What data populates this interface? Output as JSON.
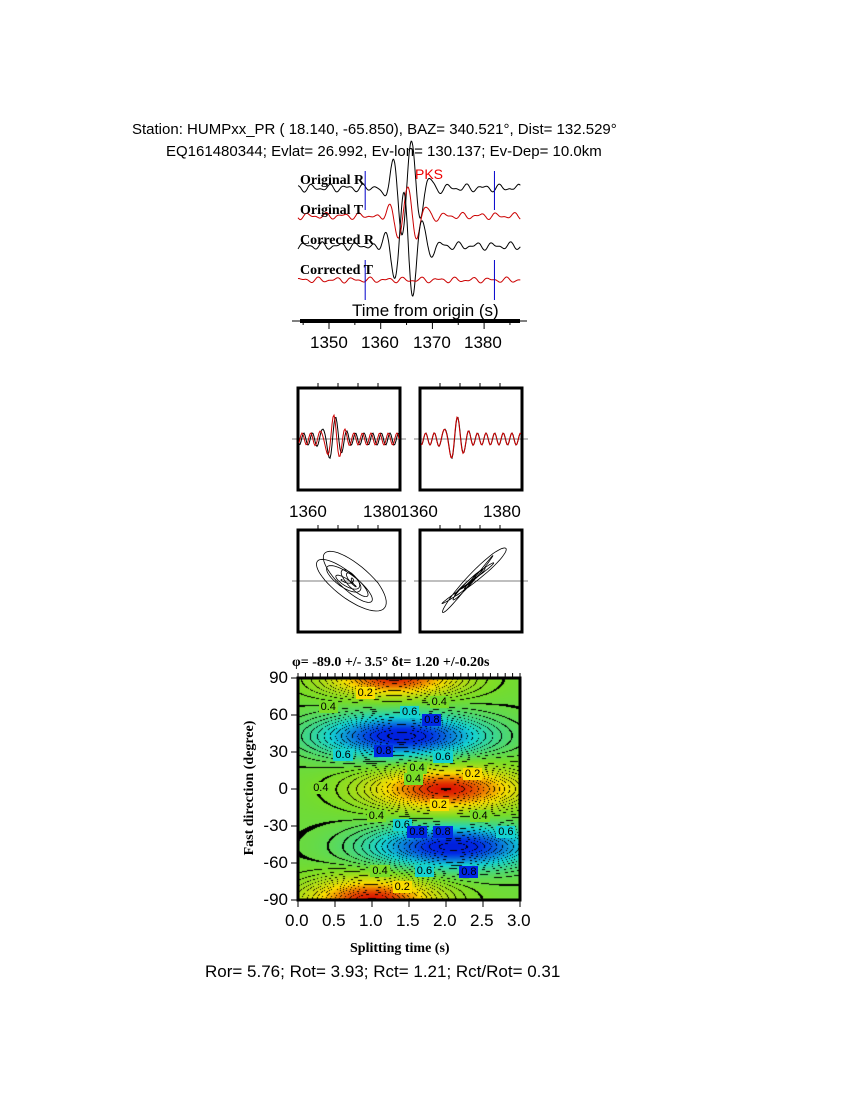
{
  "header": {
    "line1": "Station: HUMPxx_PR (  18.140,  -65.850), BAZ=  340.521°, Dist=  132.529°",
    "line2": "EQ161480344; Evlat=  26.992, Ev-lon= 130.137; Ev-Dep= 10.0km"
  },
  "chart_data": [
    {
      "type": "line",
      "panel": "waveforms",
      "phase_label": "PKS",
      "series": [
        {
          "name": "Original R",
          "color": "#000000"
        },
        {
          "name": "Original T",
          "color": "#cc0000"
        },
        {
          "name": "Corrected R",
          "color": "#000000"
        },
        {
          "name": "Corrected T",
          "color": "#cc0000"
        }
      ],
      "window_markers": [
        1357,
        1382
      ],
      "marker_color": "#0000cc",
      "xlabel": "Time from origin (s)",
      "xticks": [
        "1350",
        "1360",
        "1370",
        "1380"
      ],
      "xlim": [
        1344,
        1387
      ]
    },
    {
      "type": "line",
      "panel": "original-RT-overlay",
      "xticks": [
        "1360",
        "1380"
      ],
      "xlim": [
        1356,
        1383
      ]
    },
    {
      "type": "line",
      "panel": "corrected-RT-overlay",
      "xticks": [
        "1360",
        "1380"
      ],
      "xlim": [
        1356,
        1383
      ]
    },
    {
      "type": "line",
      "panel": "original-particle-motion"
    },
    {
      "type": "line",
      "panel": "corrected-particle-motion"
    },
    {
      "type": "heatmap",
      "panel": "energy-grid",
      "title": "φ= -89.0 +/- 3.5° δt= 1.20 +/-0.20s",
      "xlabel": "Splitting time (s)",
      "ylabel": "Fast direction (degree)",
      "xlim": [
        0,
        3
      ],
      "ylim": [
        -90,
        90
      ],
      "xticks": [
        "0.0",
        "0.5",
        "1.0",
        "1.5",
        "2.0",
        "2.5",
        "3.0"
      ],
      "yticks": [
        "90",
        "60",
        "30",
        "0",
        "-30",
        "-60",
        "-90"
      ],
      "contour_labels": [
        {
          "text": "0.2",
          "x": 0.9,
          "y": 77
        },
        {
          "text": "0.4",
          "x": 0.4,
          "y": 66
        },
        {
          "text": "0.4",
          "x": 1.9,
          "y": 70
        },
        {
          "text": "0.6",
          "x": 1.5,
          "y": 62
        },
        {
          "text": "0.8",
          "x": 1.8,
          "y": 55
        },
        {
          "text": "0.6",
          "x": 0.6,
          "y": 27
        },
        {
          "text": "0.8",
          "x": 1.15,
          "y": 30
        },
        {
          "text": "0.6",
          "x": 1.95,
          "y": 25
        },
        {
          "text": "0.4",
          "x": 1.6,
          "y": 16
        },
        {
          "text": "0.4",
          "x": 1.55,
          "y": 7
        },
        {
          "text": "0.2",
          "x": 2.35,
          "y": 11
        },
        {
          "text": "0.4",
          "x": 0.3,
          "y": 0
        },
        {
          "text": "0.2",
          "x": 1.9,
          "y": -14
        },
        {
          "text": "0.4",
          "x": 1.05,
          "y": -23
        },
        {
          "text": "0.4",
          "x": 2.45,
          "y": -23
        },
        {
          "text": "0.6",
          "x": 1.4,
          "y": -30
        },
        {
          "text": "0.8",
          "x": 1.6,
          "y": -36
        },
        {
          "text": "0.8",
          "x": 1.95,
          "y": -36
        },
        {
          "text": "0.6",
          "x": 2.8,
          "y": -36
        },
        {
          "text": "0.4",
          "x": 1.1,
          "y": -67
        },
        {
          "text": "0.6",
          "x": 1.7,
          "y": -67
        },
        {
          "text": "0.8",
          "x": 2.3,
          "y": -68
        },
        {
          "text": "0.2",
          "x": 1.4,
          "y": -80
        }
      ]
    }
  ],
  "footer": "Ror= 5.76; Rot= 3.93; Rct= 1.21; Rct/Rot= 0.31"
}
